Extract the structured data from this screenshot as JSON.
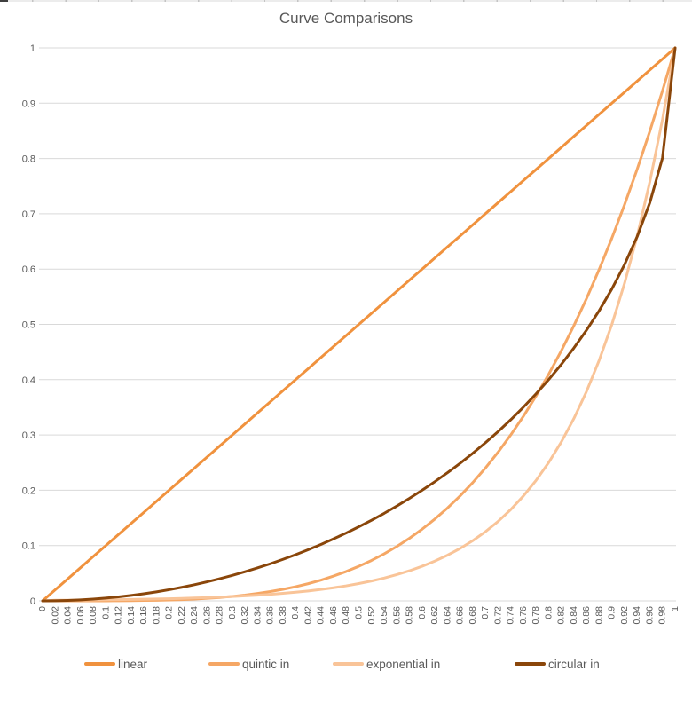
{
  "chart": {
    "title": "Curve Comparisons"
  },
  "colors": {
    "grid": "#D9D9D9",
    "axis_text": "#595959",
    "title_text": "#595959"
  },
  "axes": {
    "x_tick_labels": [
      "0",
      "0.02",
      "0.04",
      "0.06",
      "0.08",
      "0.1",
      "0.12",
      "0.14",
      "0.16",
      "0.18",
      "0.2",
      "0.22",
      "0.24",
      "0.26",
      "0.28",
      "0.3",
      "0.32",
      "0.34",
      "0.36",
      "0.38",
      "0.4",
      "0.42",
      "0.44",
      "0.46",
      "0.48",
      "0.5",
      "0.52",
      "0.54",
      "0.56",
      "0.58",
      "0.6",
      "0.62",
      "0.64",
      "0.66",
      "0.68",
      "0.7",
      "0.72",
      "0.74",
      "0.76",
      "0.78",
      "0.8",
      "0.82",
      "0.84",
      "0.86",
      "0.88",
      "0.9",
      "0.92",
      "0.94",
      "0.96",
      "0.98",
      "1"
    ],
    "y_tick_labels": [
      "1",
      "0.9",
      "0.8",
      "0.7",
      "0.6",
      "0.5",
      "0.4",
      "0.3",
      "0.2",
      "0.1",
      "0"
    ]
  },
  "chart_data": {
    "type": "line",
    "title": "Curve Comparisons",
    "xlabel": "",
    "ylabel": "",
    "xlim": [
      0,
      1
    ],
    "ylim": [
      0,
      1
    ],
    "x_tick_step": 0.02,
    "y_tick_step": 0.1,
    "grid": "horizontal",
    "legend_position": "bottom",
    "x": [
      0,
      0.02,
      0.04,
      0.06,
      0.08,
      0.1,
      0.12,
      0.14,
      0.16,
      0.18,
      0.2,
      0.22,
      0.24,
      0.26,
      0.28,
      0.3,
      0.32,
      0.34,
      0.36,
      0.38,
      0.4,
      0.42,
      0.44,
      0.46,
      0.48,
      0.5,
      0.52,
      0.54,
      0.56,
      0.58,
      0.6,
      0.62,
      0.64,
      0.66,
      0.68,
      0.7,
      0.72,
      0.74,
      0.76,
      0.78,
      0.8,
      0.82,
      0.84,
      0.86,
      0.88,
      0.9,
      0.92,
      0.94,
      0.96,
      0.98,
      1
    ],
    "series": [
      {
        "name": "linear",
        "color": "#F0923E",
        "values": [
          0,
          0.02,
          0.04,
          0.06,
          0.08,
          0.1,
          0.12,
          0.14,
          0.16,
          0.18,
          0.2,
          0.22,
          0.24,
          0.26,
          0.28,
          0.3,
          0.32,
          0.34,
          0.36,
          0.38,
          0.4,
          0.42,
          0.44,
          0.46,
          0.48,
          0.5,
          0.52,
          0.54,
          0.56,
          0.58,
          0.6,
          0.62,
          0.64,
          0.66,
          0.68,
          0.7,
          0.72,
          0.74,
          0.76,
          0.78,
          0.8,
          0.82,
          0.84,
          0.86,
          0.88,
          0.9,
          0.92,
          0.94,
          0.96,
          0.98,
          1
        ]
      },
      {
        "name": "quintic in",
        "color": "#F5A765",
        "values": [
          0,
          0,
          0,
          0,
          0,
          0.0001,
          0.0002,
          0.0004,
          0.0007,
          0.001,
          0.0016,
          0.0023,
          0.0033,
          0.0046,
          0.0061,
          0.0081,
          0.0105,
          0.0134,
          0.0168,
          0.0209,
          0.0256,
          0.0311,
          0.0375,
          0.0448,
          0.0531,
          0.0625,
          0.0731,
          0.085,
          0.0983,
          0.1132,
          0.1296,
          0.1478,
          0.1678,
          0.1897,
          0.2138,
          0.2401,
          0.2687,
          0.2999,
          0.3336,
          0.3702,
          0.4096,
          0.4521,
          0.4979,
          0.547,
          0.5997,
          0.6561,
          0.7164,
          0.7807,
          0.8493,
          0.9224,
          1
        ]
      },
      {
        "name": "exponential in",
        "color": "#F9C498",
        "values": [
          0,
          0.0011,
          0.0013,
          0.0015,
          0.0017,
          0.002,
          0.0022,
          0.0026,
          0.003,
          0.0034,
          0.0039,
          0.0045,
          0.0052,
          0.0059,
          0.0068,
          0.0078,
          0.009,
          0.0103,
          0.0118,
          0.0136,
          0.0156,
          0.0179,
          0.0206,
          0.0237,
          0.0272,
          0.0313,
          0.0359,
          0.0412,
          0.0474,
          0.0544,
          0.0625,
          0.0718,
          0.0825,
          0.0947,
          0.1088,
          0.125,
          0.1436,
          0.1649,
          0.1895,
          0.2176,
          0.25,
          0.2872,
          0.3299,
          0.3789,
          0.4353,
          0.5,
          0.5743,
          0.6598,
          0.7579,
          0.8706,
          1
        ]
      },
      {
        "name": "circular in",
        "color": "#8A460A",
        "values": [
          0,
          0.0002,
          0.0008,
          0.0018,
          0.0032,
          0.005,
          0.0072,
          0.0098,
          0.0129,
          0.0163,
          0.0202,
          0.0245,
          0.0292,
          0.0344,
          0.04,
          0.0461,
          0.0526,
          0.0596,
          0.067,
          0.075,
          0.0835,
          0.0925,
          0.102,
          0.1121,
          0.1227,
          0.134,
          0.1458,
          0.1583,
          0.1715,
          0.1854,
          0.2,
          0.2154,
          0.2316,
          0.2487,
          0.2668,
          0.2859,
          0.306,
          0.3274,
          0.3501,
          0.3742,
          0.4,
          0.4276,
          0.4574,
          0.4897,
          0.525,
          0.5641,
          0.6081,
          0.6588,
          0.72,
          0.801,
          1
        ]
      }
    ]
  }
}
